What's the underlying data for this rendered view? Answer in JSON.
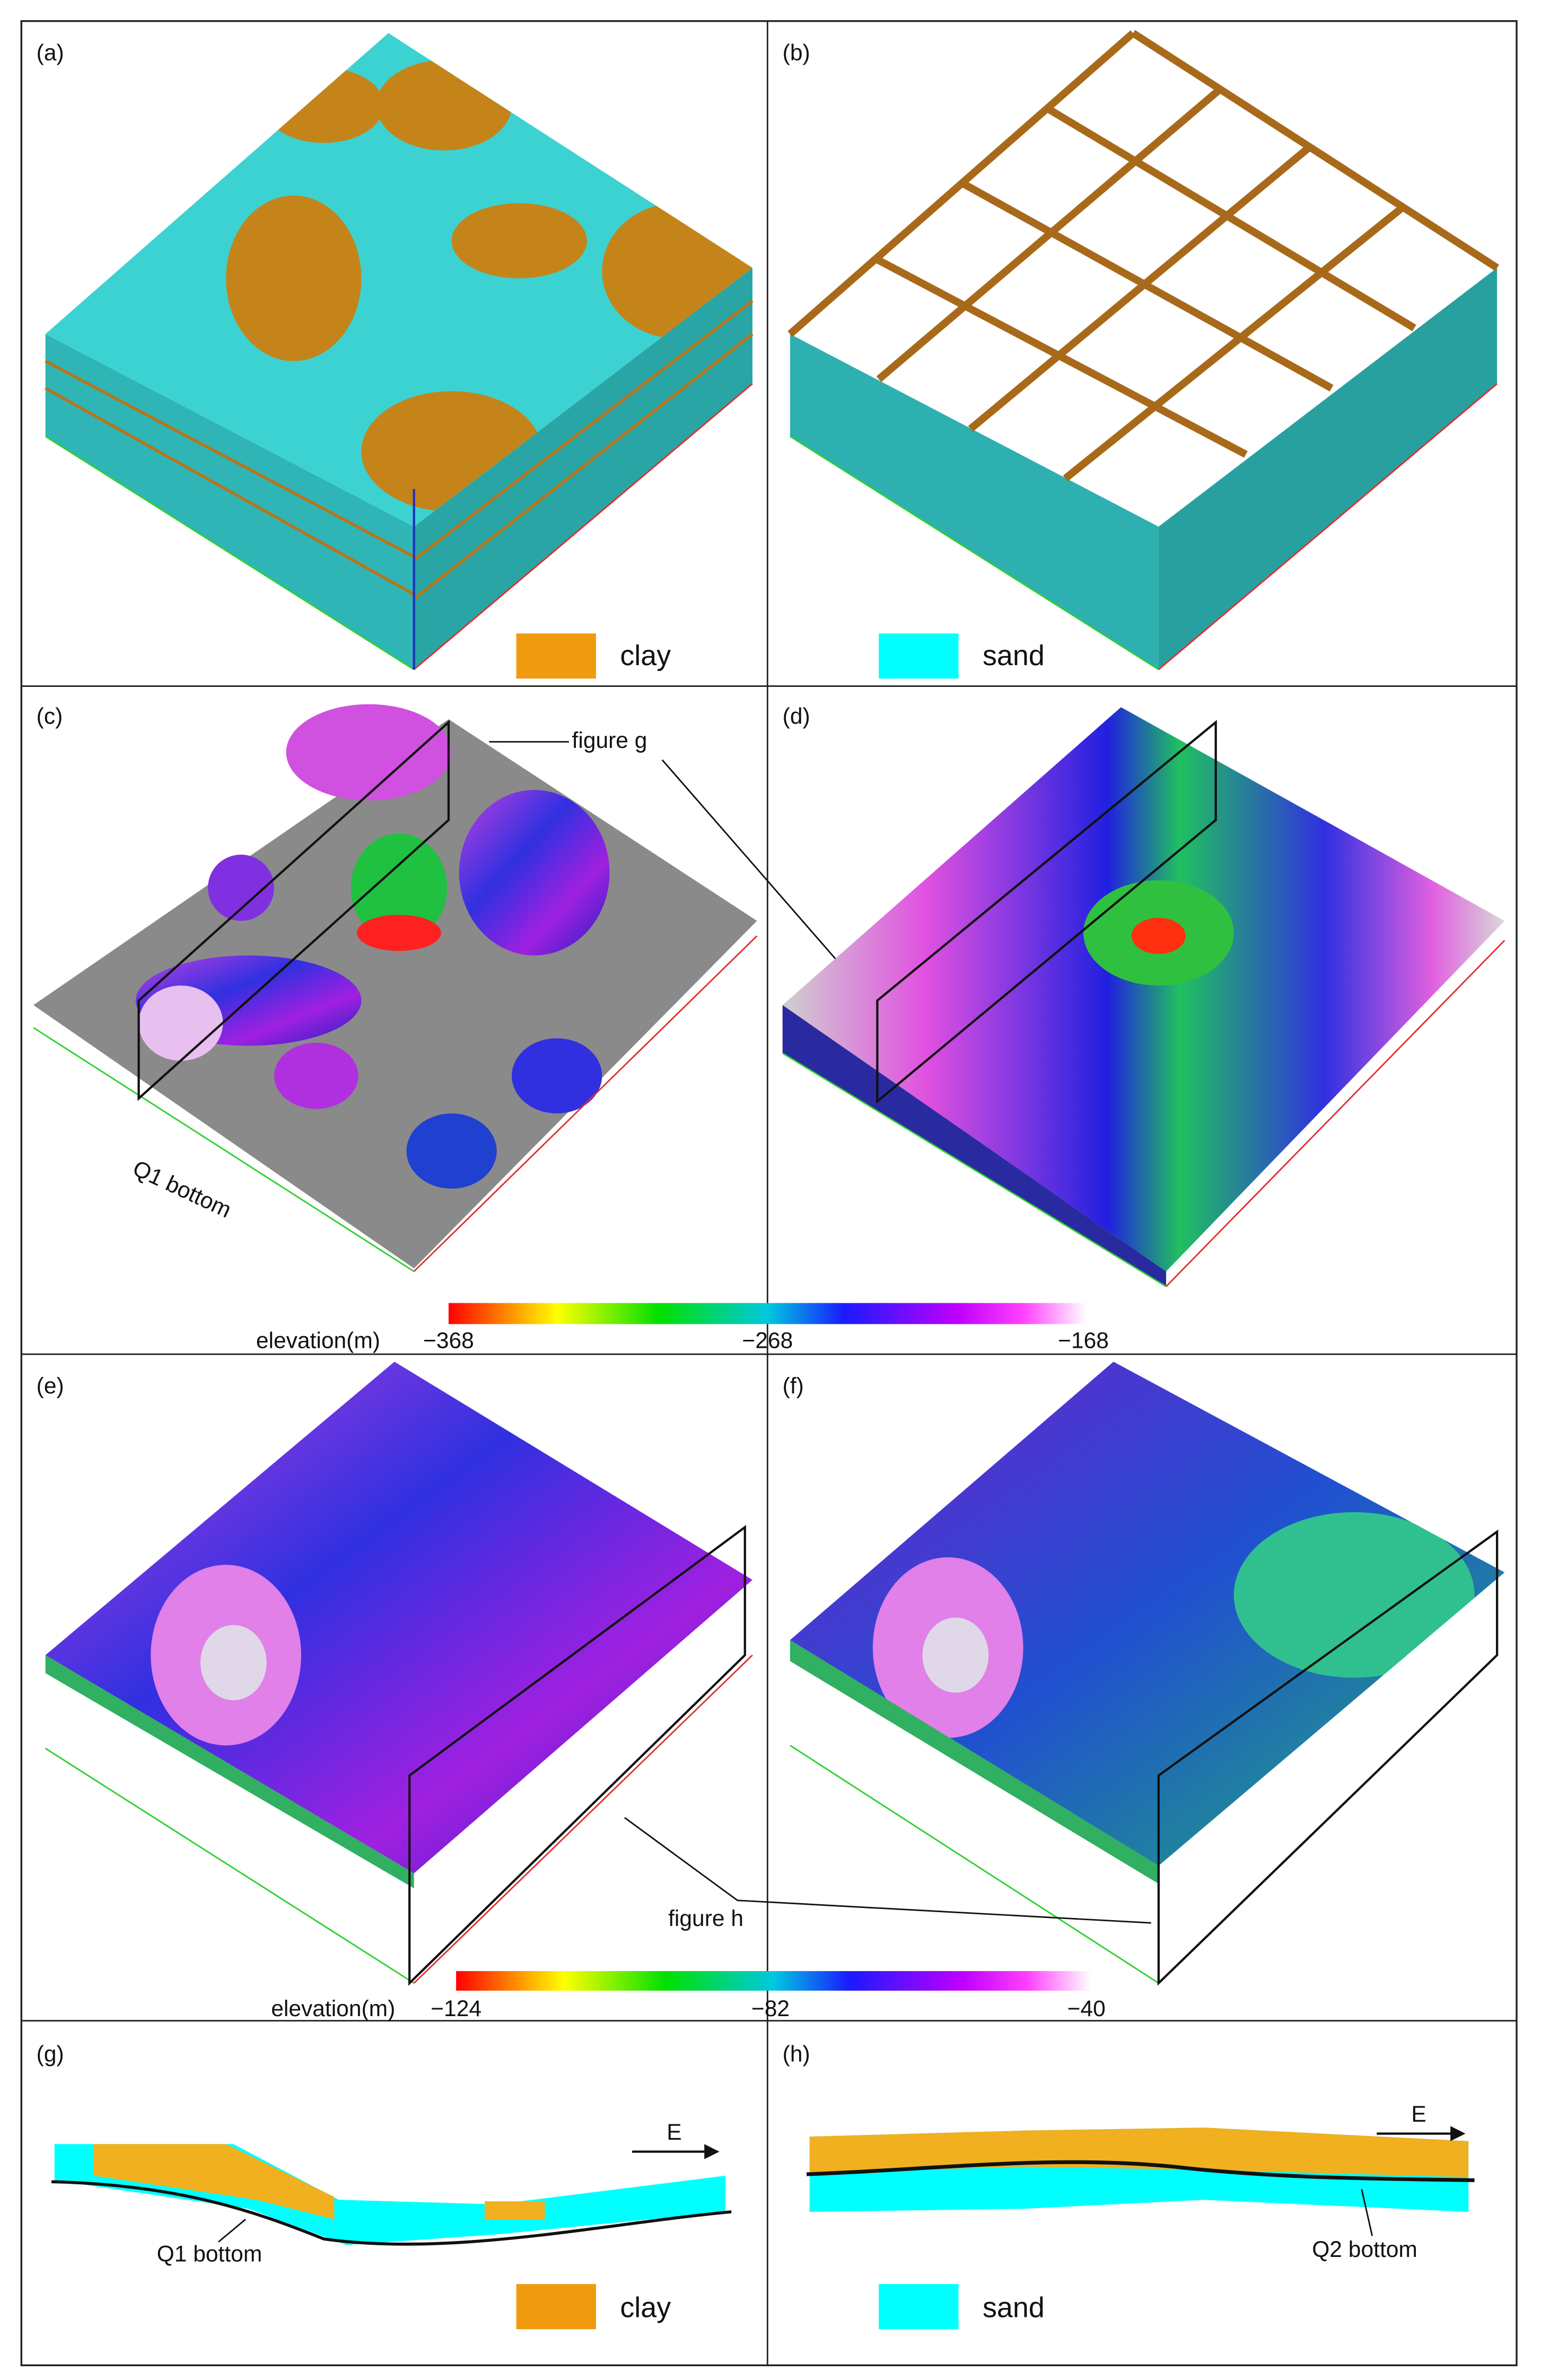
{
  "panels": [
    {
      "label": "(a)"
    },
    {
      "label": "(b)"
    },
    {
      "label": "(c)"
    },
    {
      "label": "(d)"
    },
    {
      "label": "(e)"
    },
    {
      "label": "(f)"
    },
    {
      "label": "(g)"
    },
    {
      "label": "(h)"
    }
  ],
  "legends": [
    {
      "clay": "clay",
      "sand": "sand"
    },
    {
      "clay": "clay",
      "sand": "sand"
    }
  ],
  "annotations": {
    "figure_g": "figure g",
    "figure_h": "figure h",
    "q1_bottom_c": "Q1 bottom",
    "q1_bottom_g": "Q1 bottom",
    "q2_bottom_h": "Q2 bottom",
    "east_g": "E",
    "east_h": "E"
  },
  "colorbars": [
    {
      "title": "elevation(m)",
      "ticks": [
        "−368",
        "−268",
        "−168"
      ]
    },
    {
      "title": "elevation(m)",
      "ticks": [
        "−124",
        "−82",
        "−40"
      ]
    }
  ]
}
